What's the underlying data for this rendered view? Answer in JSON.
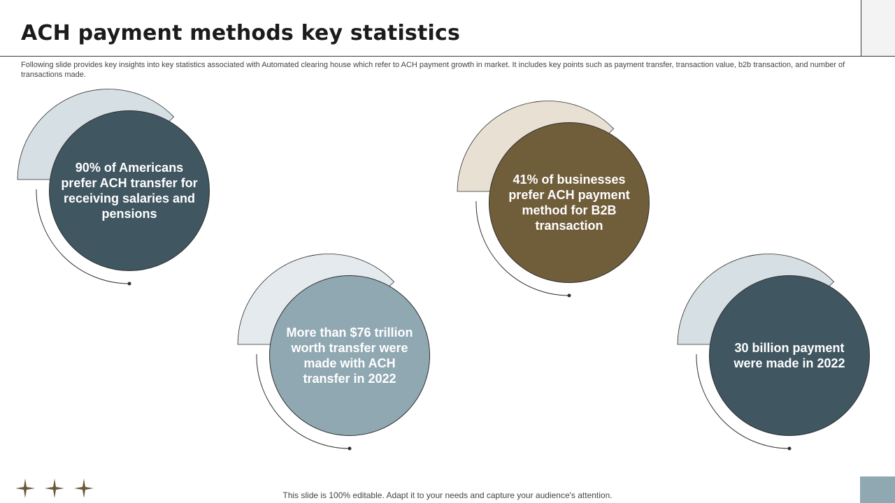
{
  "header": {
    "title": "ACH payment methods key statistics",
    "subtitle": "Following slide provides key insights into key statistics associated with Automated clearing house which refer to ACH payment growth in market. It includes key points such as payment transfer, transaction value, b2b transaction, and number of transactions made."
  },
  "stats": [
    {
      "text": "90% of Americans prefer ACH transfer for receiving salaries and pensions",
      "fill": "#405661",
      "accent": "#d6dfe3"
    },
    {
      "text": "More than $76 trillion worth transfer were made with ACH transfer in 2022",
      "fill": "#90a8b2",
      "accent": "#e4eaed"
    },
    {
      "text": "41% of businesses prefer ACH payment method for B2B transaction",
      "fill": "#705d39",
      "accent": "#e8e1d3"
    },
    {
      "text": "30 billion payment were made in 2022",
      "fill": "#405661",
      "accent": "#d6dfe3"
    }
  ],
  "footer": {
    "note": "This slide is 100% editable. Adapt it to your needs and capture your audience's attention."
  },
  "colors": {
    "star": "#6b5a3a",
    "footer_box": "#90a8b2",
    "line": "#2f2f2f"
  },
  "icons": [
    "star-icon",
    "star-icon",
    "star-icon"
  ]
}
